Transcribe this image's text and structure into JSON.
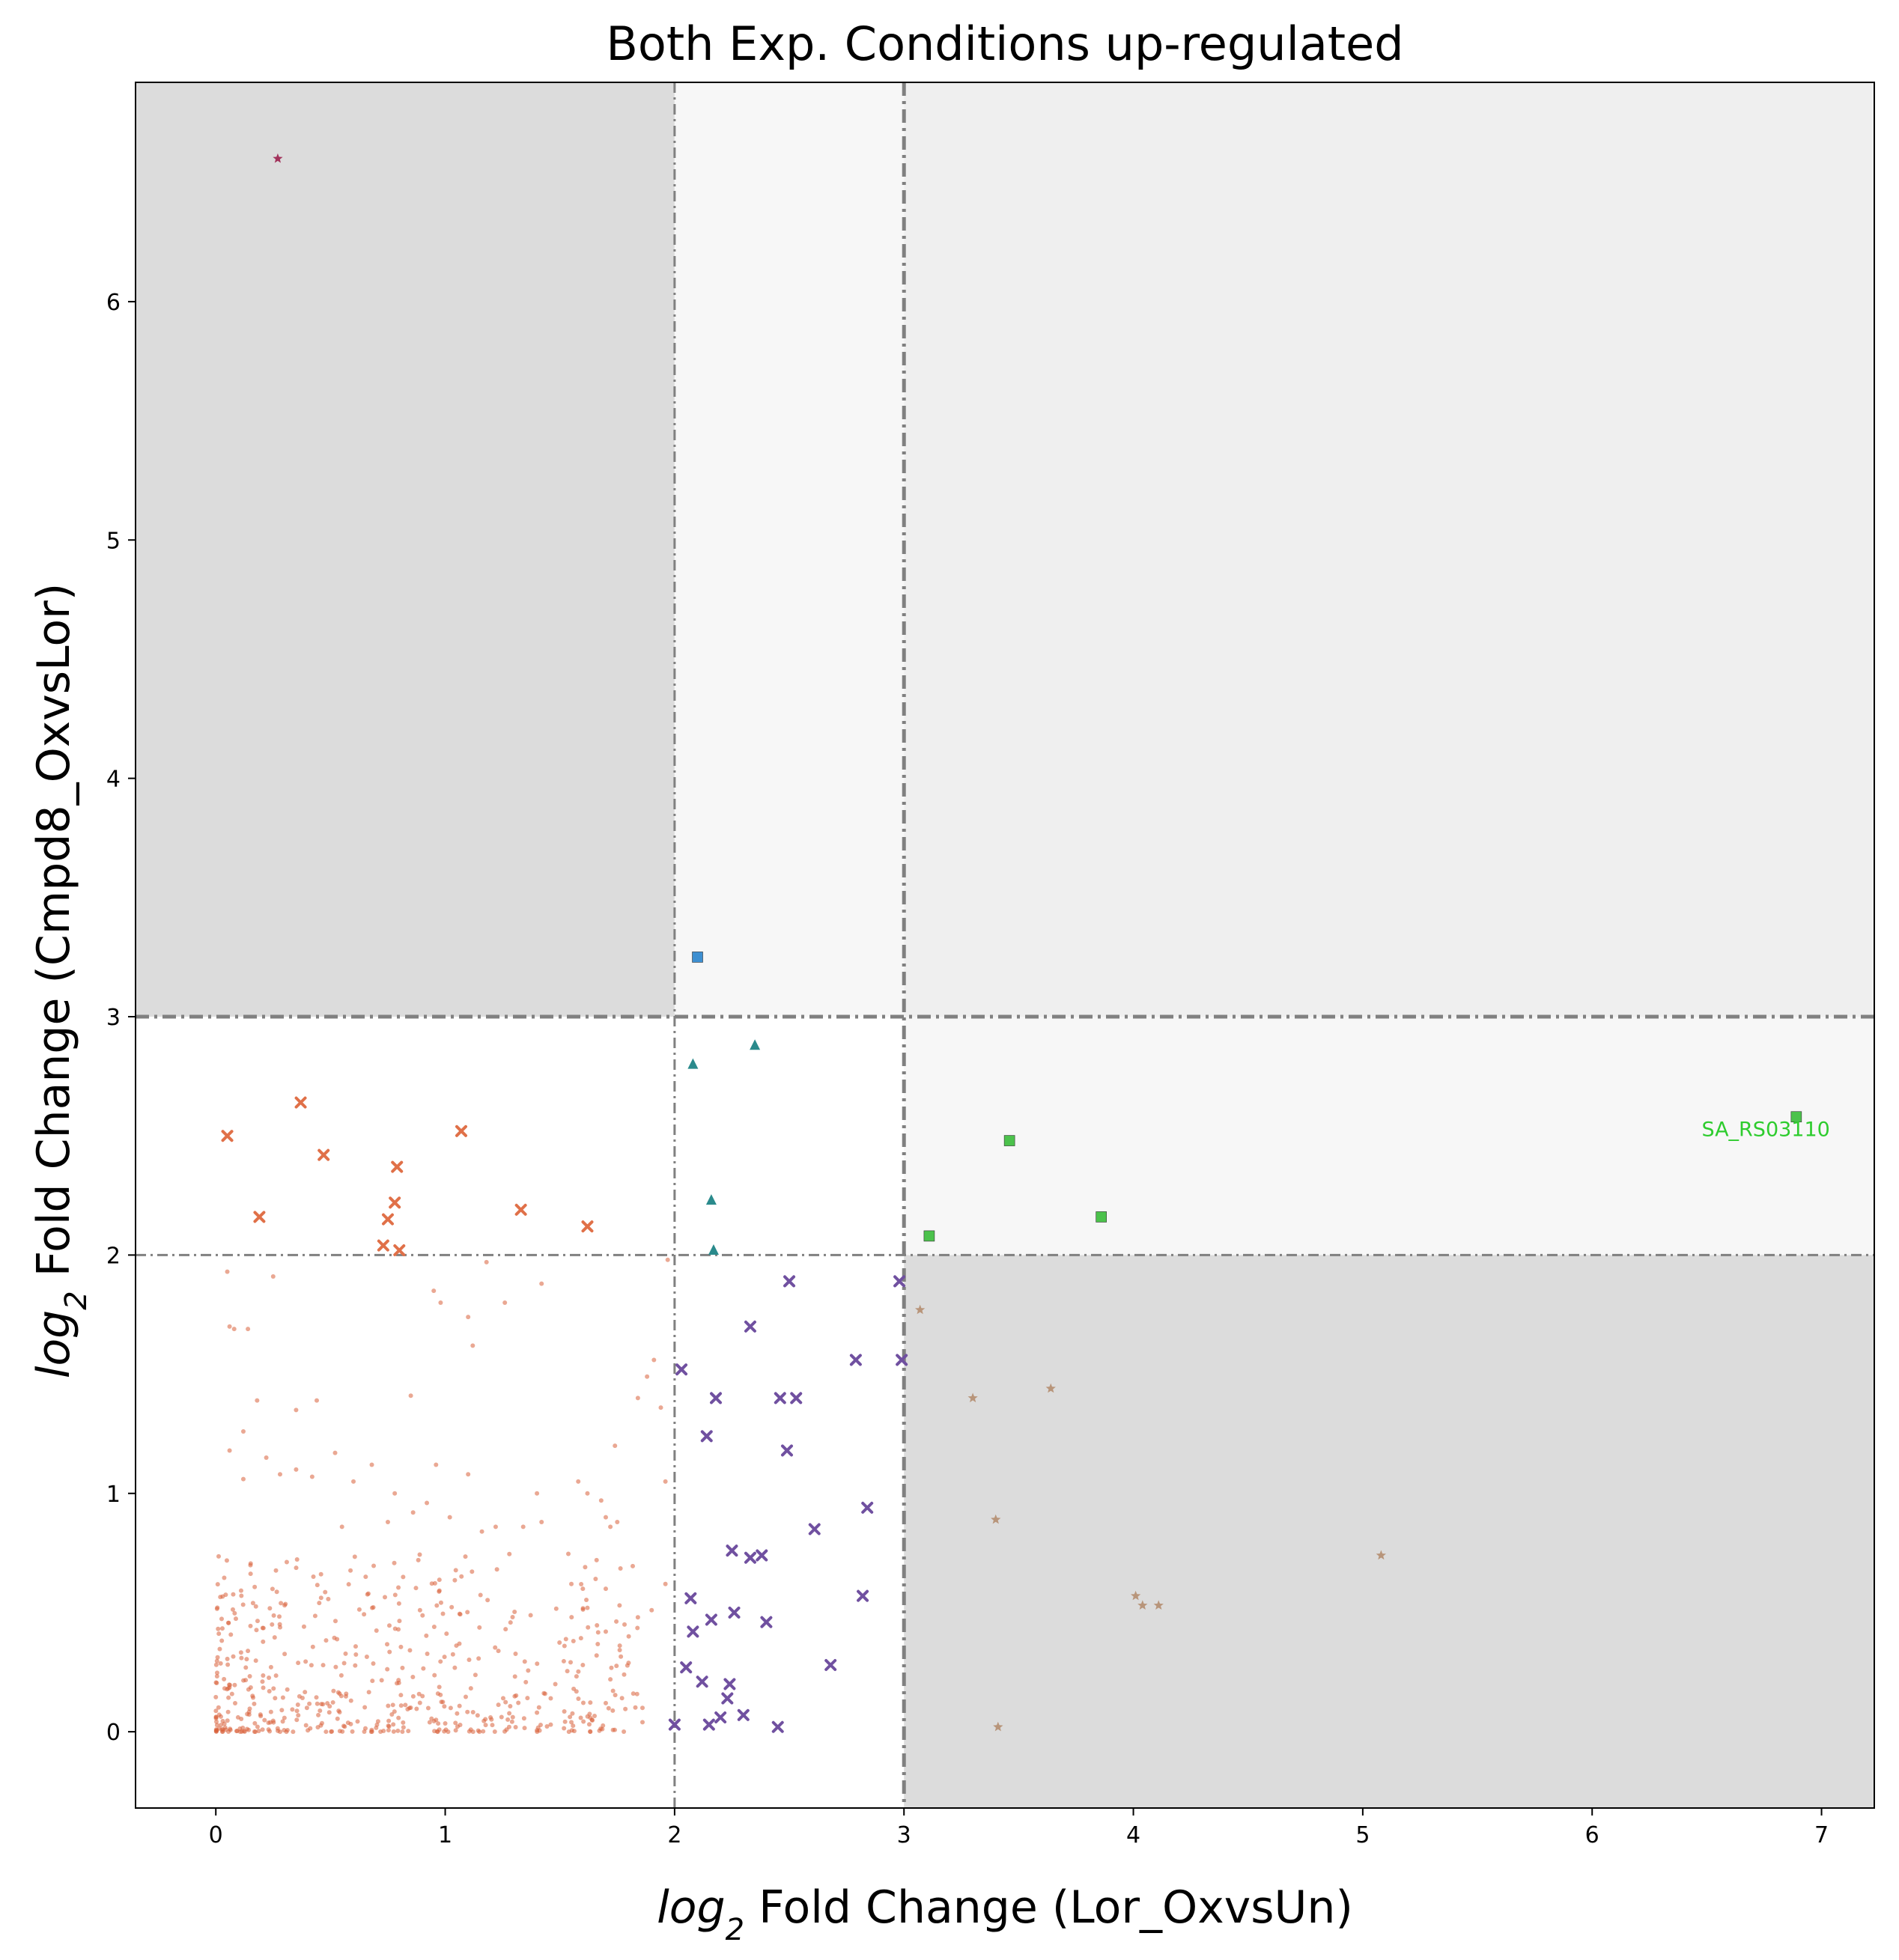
{
  "chart_data": {
    "type": "scatter",
    "title": "Both Exp. Conditions up-regulated",
    "xlabel_italic": "log",
    "xlabel_sub": "2",
    "xlabel_rest": " Fold Change (Lor_OxvsUn)",
    "ylabel_italic": "log",
    "ylabel_sub": "2",
    "ylabel_rest": " Fold Change (Cmpd8_OxvsLor)",
    "xlim": [
      -0.35,
      7.23
    ],
    "ylim": [
      -0.32,
      6.92
    ],
    "xticks": [
      0,
      1,
      2,
      3,
      4,
      5,
      6,
      7
    ],
    "yticks": [
      0,
      1,
      2,
      3,
      4,
      5,
      6
    ],
    "thresholds": {
      "x": [
        2,
        3
      ],
      "y": [
        2,
        3
      ]
    },
    "regions": [
      {
        "x": [
          -0.35,
          2
        ],
        "y": [
          3,
          6.92
        ],
        "color": "#dcdcdc"
      },
      {
        "x": [
          2,
          3
        ],
        "y": [
          3,
          6.92
        ],
        "color": "#f7f7f7"
      },
      {
        "x": [
          3,
          7.23
        ],
        "y": [
          3,
          6.92
        ],
        "color": "#efefef"
      },
      {
        "x": [
          3,
          7.23
        ],
        "y": [
          2,
          3
        ],
        "color": "#f7f7f7"
      },
      {
        "x": [
          3,
          7.23
        ],
        "y": [
          -0.32,
          2
        ],
        "color": "#dcdcdc"
      }
    ],
    "series": [
      {
        "marker": "dot",
        "color": "#d9603b",
        "points": [
          [
            0.05,
            1.93
          ],
          [
            0.06,
            1.7
          ],
          [
            0.08,
            1.69
          ],
          [
            0.14,
            1.69
          ],
          [
            0.25,
            1.91
          ],
          [
            0.95,
            1.85
          ],
          [
            0.98,
            1.8
          ],
          [
            1.1,
            1.74
          ],
          [
            1.12,
            1.62
          ],
          [
            1.18,
            1.97
          ],
          [
            1.26,
            1.8
          ],
          [
            1.42,
            1.88
          ],
          [
            1.91,
            1.56
          ],
          [
            1.88,
            1.49
          ],
          [
            1.84,
            1.4
          ],
          [
            1.97,
            1.98
          ],
          [
            1.94,
            1.36
          ],
          [
            1.96,
            1.05
          ],
          [
            1.96,
            0.62
          ],
          [
            0.18,
            1.39
          ],
          [
            0.35,
            1.35
          ],
          [
            0.44,
            1.39
          ],
          [
            0.12,
            1.26
          ],
          [
            0.06,
            1.18
          ],
          [
            0.22,
            1.15
          ],
          [
            0.52,
            1.17
          ],
          [
            0.68,
            1.12
          ],
          [
            0.96,
            1.12
          ],
          [
            1.74,
            1.2
          ],
          [
            0.35,
            1.1
          ],
          [
            0.28,
            1.08
          ],
          [
            0.42,
            1.07
          ],
          [
            0.12,
            1.06
          ],
          [
            0.85,
            1.41
          ],
          [
            0.6,
            1.05
          ],
          [
            0.78,
            1.0
          ],
          [
            1.4,
            1.0
          ],
          [
            1.58,
            1.05
          ],
          [
            1.62,
            1.0
          ],
          [
            1.68,
            0.97
          ],
          [
            1.7,
            0.9
          ],
          [
            1.72,
            0.86
          ],
          [
            1.75,
            0.88
          ],
          [
            1.66,
            0.72
          ],
          [
            1.42,
            0.88
          ],
          [
            1.34,
            0.86
          ],
          [
            1.22,
            0.86
          ],
          [
            0.92,
            0.96
          ],
          [
            0.86,
            0.92
          ],
          [
            1.02,
            0.9
          ],
          [
            1.1,
            1.08
          ],
          [
            1.16,
            0.84
          ],
          [
            0.75,
            0.88
          ],
          [
            0.55,
            0.86
          ],
          [
            1.55,
            0.62
          ],
          [
            1.6,
            0.6
          ],
          [
            1.62,
            0.52
          ],
          [
            1.7,
            0.6
          ],
          [
            1.76,
            0.53
          ],
          [
            1.8,
            0.4
          ],
          [
            1.7,
            0.42
          ],
          [
            1.66,
            0.32
          ],
          [
            1.84,
            0.48
          ],
          [
            1.9,
            0.51
          ],
          [
            1.6,
            0.28
          ],
          [
            1.52,
            0.36
          ],
          [
            1.48,
            0.2
          ],
          [
            1.56,
            0.18
          ],
          [
            1.72,
            0.22
          ],
          [
            1.78,
            0.24
          ],
          [
            1.82,
            0.16
          ],
          [
            1.86,
            0.1
          ],
          [
            1.86,
            0.04
          ],
          [
            1.7,
            0.12
          ],
          [
            1.64,
            0.05
          ],
          [
            1.55,
            0.04
          ],
          [
            1.46,
            0.03
          ],
          [
            1.4,
            0.08
          ],
          [
            1.46,
            0.14
          ]
        ]
      },
      {
        "marker": "x",
        "color": "#e07048",
        "points": [
          [
            0.05,
            2.5
          ],
          [
            0.37,
            2.64
          ],
          [
            0.47,
            2.42
          ],
          [
            0.79,
            2.37
          ],
          [
            0.78,
            2.22
          ],
          [
            0.75,
            2.15
          ],
          [
            0.73,
            2.04
          ],
          [
            0.8,
            2.02
          ],
          [
            0.19,
            2.16
          ],
          [
            1.07,
            2.52
          ],
          [
            1.33,
            2.19
          ],
          [
            1.62,
            2.12
          ]
        ]
      },
      {
        "marker": "star",
        "color": "#a2325b",
        "points": [
          [
            0.27,
            6.6
          ]
        ]
      },
      {
        "marker": "square",
        "color": "#3d8fd1",
        "points": [
          [
            2.1,
            3.25
          ]
        ]
      },
      {
        "marker": "triangle",
        "color": "#2a8a8c",
        "points": [
          [
            2.08,
            2.8
          ],
          [
            2.35,
            2.88
          ],
          [
            2.16,
            2.23
          ],
          [
            2.17,
            2.02
          ]
        ]
      },
      {
        "marker": "x",
        "color": "#7050a0",
        "points": [
          [
            2.5,
            1.89
          ],
          [
            2.98,
            1.89
          ],
          [
            2.33,
            1.7
          ],
          [
            2.03,
            1.52
          ],
          [
            2.79,
            1.56
          ],
          [
            2.99,
            1.56
          ],
          [
            2.18,
            1.4
          ],
          [
            2.46,
            1.4
          ],
          [
            2.53,
            1.4
          ],
          [
            2.14,
            1.24
          ],
          [
            2.49,
            1.18
          ],
          [
            2.84,
            0.94
          ],
          [
            2.61,
            0.85
          ],
          [
            2.25,
            0.76
          ],
          [
            2.33,
            0.73
          ],
          [
            2.38,
            0.74
          ],
          [
            2.07,
            0.56
          ],
          [
            2.82,
            0.57
          ],
          [
            2.26,
            0.5
          ],
          [
            2.16,
            0.47
          ],
          [
            2.4,
            0.46
          ],
          [
            2.08,
            0.42
          ],
          [
            2.05,
            0.27
          ],
          [
            2.68,
            0.28
          ],
          [
            2.12,
            0.21
          ],
          [
            2.24,
            0.2
          ],
          [
            2.23,
            0.14
          ],
          [
            2.2,
            0.06
          ],
          [
            2.3,
            0.07
          ],
          [
            2.0,
            0.03
          ],
          [
            2.15,
            0.03
          ],
          [
            2.45,
            0.02
          ]
        ]
      },
      {
        "marker": "square",
        "color": "#4cc24c",
        "points": [
          [
            3.46,
            2.48
          ],
          [
            3.86,
            2.16
          ],
          [
            3.11,
            2.08
          ],
          [
            6.89,
            2.58
          ]
        ]
      },
      {
        "marker": "star",
        "color": "#b8957a",
        "points": [
          [
            3.07,
            1.77
          ],
          [
            3.3,
            1.4
          ],
          [
            3.64,
            1.44
          ],
          [
            3.4,
            0.89
          ],
          [
            5.08,
            0.74
          ],
          [
            4.01,
            0.57
          ],
          [
            4.04,
            0.53
          ],
          [
            4.11,
            0.53
          ],
          [
            3.41,
            0.02
          ]
        ]
      }
    ],
    "annotations": [
      {
        "text": "SA_RS03110",
        "x": 6.89,
        "y": 2.58,
        "color": "#2ecc2e"
      }
    ]
  }
}
